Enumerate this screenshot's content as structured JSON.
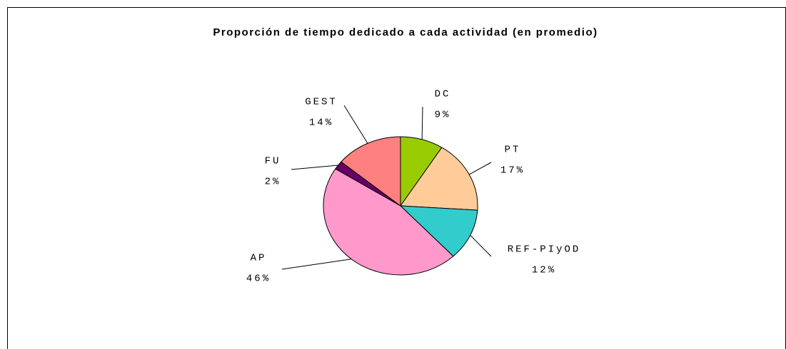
{
  "chart_data": {
    "type": "pie",
    "title": "Proporción de tiempo dedicado a cada actividad (en promedio)",
    "categories": [
      "DC",
      "PT",
      "REF-PIyOD",
      "AP",
      "FU",
      "GEST"
    ],
    "values": [
      9,
      17,
      12,
      46,
      2,
      14
    ],
    "value_labels": [
      "9%",
      "17%",
      "12%",
      "46%",
      "2%",
      "14%"
    ],
    "colors": [
      "#99cc00",
      "#ffcc99",
      "#33cccc",
      "#ff99cc",
      "#660066",
      "#ff8080"
    ]
  }
}
